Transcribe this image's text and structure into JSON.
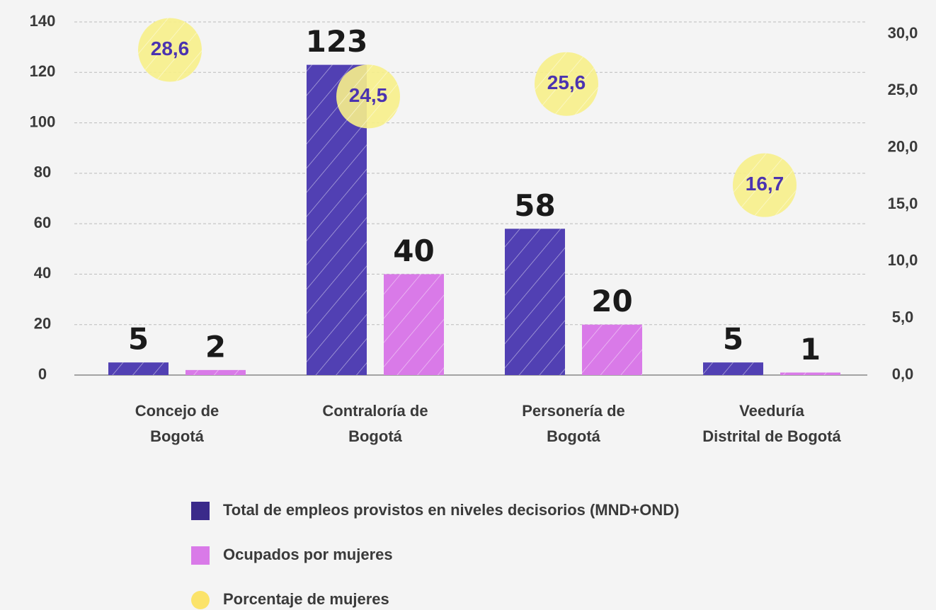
{
  "chart_data": {
    "type": "bar",
    "categories": [
      "Concejo de\nBogotá",
      "Contraloría de\nBogotá",
      "Personería de\nBogotá",
      "Veeduría\nDistrital de Bogotá"
    ],
    "series": [
      {
        "name": "Total de empleos provistos en niveles decisorios (MND+OND)",
        "color": "#5140b3",
        "values": [
          5,
          123,
          58,
          5
        ]
      },
      {
        "name": "Ocupados por mujeres",
        "color": "#d97ae8",
        "values": [
          2,
          40,
          20,
          1
        ]
      },
      {
        "name": "Porcentaje de mujeres",
        "color": "#f7ef8a",
        "axis": "y2",
        "type": "scatter",
        "values": [
          28.6,
          24.5,
          25.6,
          16.7
        ],
        "value_labels": [
          "28,6",
          "24,5",
          "25,6",
          "16,7"
        ]
      }
    ],
    "ylim": [
      0,
      140
    ],
    "yticks": [
      0,
      20,
      40,
      60,
      80,
      100,
      120,
      140
    ],
    "y2lim": [
      0,
      30
    ],
    "y2ticks": [
      {
        "value": 0,
        "label": "0,0"
      },
      {
        "value": 5,
        "label": "5,0"
      },
      {
        "value": 10,
        "label": "10,0"
      },
      {
        "value": 15,
        "label": "15,0"
      },
      {
        "value": 20,
        "label": "20,0"
      },
      {
        "value": 25,
        "label": "25,0"
      },
      {
        "value": 30,
        "label": "30,0"
      }
    ],
    "grid": true,
    "legend": "bottom"
  }
}
